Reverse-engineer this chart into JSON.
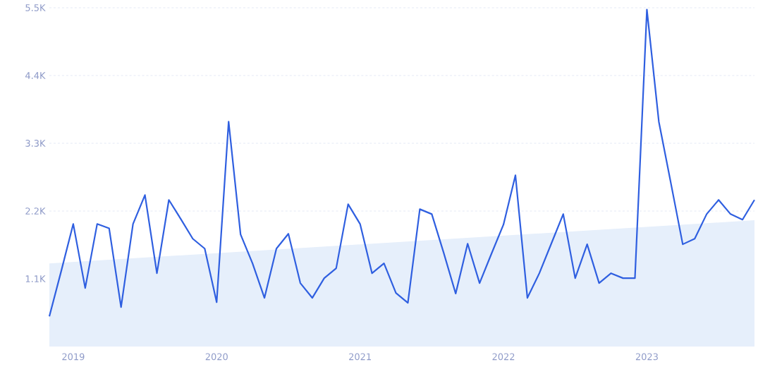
{
  "chart_data": {
    "type": "line",
    "x": [
      "2018-11",
      "2018-12",
      "2019-01",
      "2019-02",
      "2019-03",
      "2019-04",
      "2019-05",
      "2019-06",
      "2019-07",
      "2019-08",
      "2019-09",
      "2019-10",
      "2019-11",
      "2019-12",
      "2020-01",
      "2020-02",
      "2020-03",
      "2020-04",
      "2020-05",
      "2020-06",
      "2020-07",
      "2020-08",
      "2020-09",
      "2020-10",
      "2020-11",
      "2020-12",
      "2021-01",
      "2021-02",
      "2021-03",
      "2021-04",
      "2021-05",
      "2021-06",
      "2021-07",
      "2021-08",
      "2021-09",
      "2021-10",
      "2021-11",
      "2021-12",
      "2022-01",
      "2022-02",
      "2022-03",
      "2022-04",
      "2022-05",
      "2022-06",
      "2022-07",
      "2022-08",
      "2022-09",
      "2022-10",
      "2022-11",
      "2022-12",
      "2023-01",
      "2023-02",
      "2023-03",
      "2023-04",
      "2023-05",
      "2023-06",
      "2023-07",
      "2023-08",
      "2023-09",
      "2023-10"
    ],
    "series": [
      {
        "type": "area",
        "color": "#e6effb",
        "x": [
          "2018-11",
          "2023-10"
        ],
        "values": [
          1350,
          2050
        ]
      },
      {
        "color": "#2f5fe0",
        "values": [
          490,
          1230,
          1990,
          950,
          1990,
          1920,
          640,
          1990,
          2460,
          1190,
          2380,
          2070,
          1750,
          1590,
          720,
          3650,
          1820,
          1350,
          790,
          1590,
          1830,
          1030,
          790,
          1110,
          1270,
          2310,
          1990,
          1190,
          1350,
          870,
          710,
          2230,
          2150,
          1520,
          860,
          1670,
          1030,
          1510,
          1980,
          2780,
          790,
          1190,
          1670,
          2150,
          1110,
          1660,
          1030,
          1190,
          1110,
          1110,
          5470,
          3650,
          2660,
          1660,
          1750,
          2150,
          2380,
          2150,
          2060,
          2380
        ]
      }
    ],
    "xlim": [
      "2018-11",
      "2023-10"
    ],
    "xticks": [
      {
        "value": "2019-01",
        "label": "2019"
      },
      {
        "value": "2020-01",
        "label": "2020"
      },
      {
        "value": "2021-01",
        "label": "2021"
      },
      {
        "value": "2022-01",
        "label": "2022"
      },
      {
        "value": "2023-01",
        "label": "2023"
      }
    ],
    "ylim": [
      0,
      5500
    ],
    "yticks": [
      {
        "value": 1100,
        "label": "1.1K"
      },
      {
        "value": 2200,
        "label": "2.2K"
      },
      {
        "value": 3300,
        "label": "3.3K"
      },
      {
        "value": 4400,
        "label": "4.4K"
      },
      {
        "value": 5500,
        "label": "5.5K"
      }
    ],
    "grid": "y",
    "line_style": "solid",
    "marker": "none"
  }
}
